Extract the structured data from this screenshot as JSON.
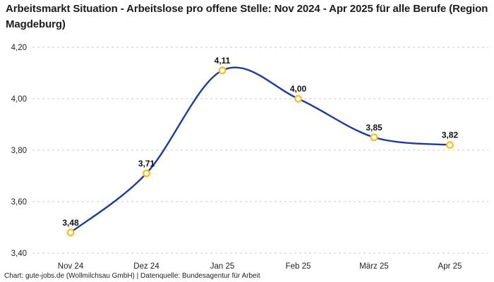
{
  "title": "Arbeitsmarkt Situation - Arbeitslose pro offene Stelle: Nov 2024 - Apr 2025 für alle Berufe (Region Magdeburg)",
  "footer": "Chart: gute-jobs.de (Wollmilchsau GmbH) | Datenquelle: Bundesagentur für Arbeit",
  "colors": {
    "line": "#1e3a9f",
    "marker_ring": "#fbbf24",
    "marker_fill": "#ffffff",
    "grid": "#c9c9c9",
    "title_text": "#1c1c1c",
    "axis_text": "#222222",
    "background": "#ffffff"
  },
  "chart_data": {
    "type": "line",
    "title": "Arbeitsmarkt Situation - Arbeitslose pro offene Stelle: Nov 2024 - Apr 2025 für alle Berufe (Region Magdeburg)",
    "categories": [
      "Nov 24",
      "Dez 24",
      "Jan 25",
      "Feb 25",
      "März 25",
      "Apr 25"
    ],
    "series": [
      {
        "name": "Arbeitslose pro offene Stelle",
        "values": [
          3.48,
          3.71,
          4.11,
          4.0,
          3.85,
          3.82
        ],
        "value_labels": [
          "3,48",
          "3,71",
          "4,11",
          "4,00",
          "3,85",
          "3,82"
        ]
      }
    ],
    "xlabel": "",
    "ylabel": "",
    "ylim": [
      3.4,
      4.2
    ],
    "y_ticks": [
      3.4,
      3.6,
      3.8,
      4.0,
      4.2
    ],
    "y_tick_labels": [
      "3,40",
      "3,60",
      "3,80",
      "4,00",
      "4,20"
    ],
    "grid": "horizontal-dashed",
    "legend_position": "none",
    "line_style": "smooth",
    "marker_style": "open-circle"
  }
}
